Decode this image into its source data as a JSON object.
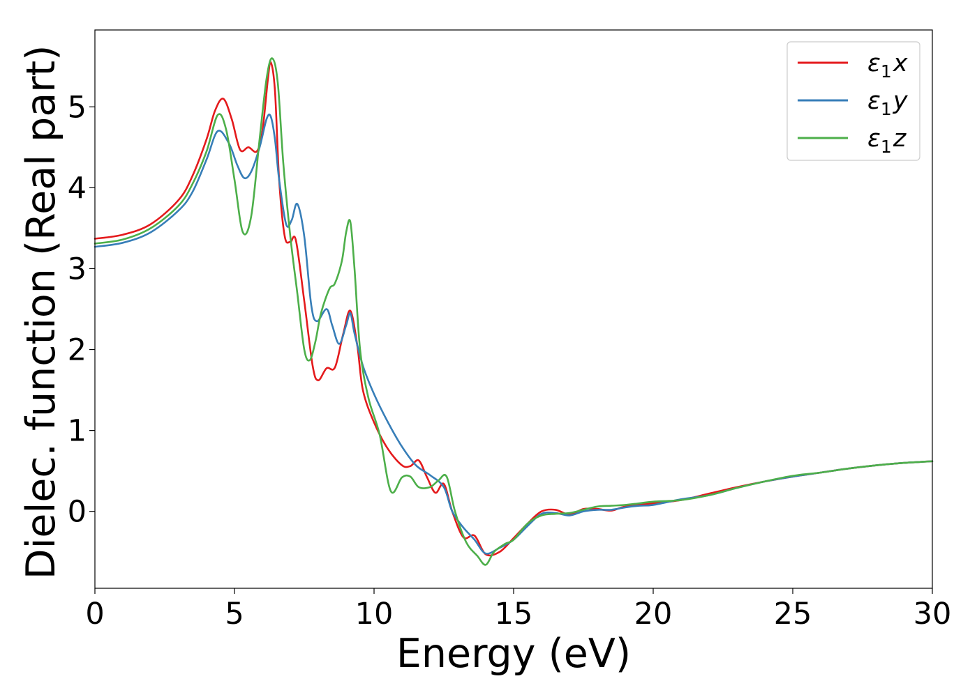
{
  "chart_data": {
    "type": "line",
    "title": "",
    "xlabel": "Energy (eV)",
    "ylabel": "Dielec. function (Real part)",
    "xlim": [
      0,
      30
    ],
    "ylim": [
      -0.95,
      5.95
    ],
    "xticks": [
      0,
      5,
      10,
      15,
      20,
      25,
      30
    ],
    "yticks": [
      0,
      1,
      2,
      3,
      4,
      5
    ],
    "grid": false,
    "legend_position": "top-right",
    "series": [
      {
        "name": "ε₁x",
        "legend": {
          "base": "ε",
          "sub": "1",
          "suffix": "x"
        },
        "color": "#e41a1c",
        "x": [
          0,
          1,
          2,
          3,
          3.5,
          4,
          4.3,
          4.6,
          4.9,
          5.2,
          5.5,
          5.8,
          6.0,
          6.2,
          6.3,
          6.45,
          6.6,
          6.8,
          7.0,
          7.2,
          7.5,
          7.8,
          8.0,
          8.3,
          8.6,
          8.9,
          9.15,
          9.4,
          9.6,
          10.0,
          10.5,
          11.0,
          11.3,
          11.6,
          11.9,
          12.2,
          12.5,
          12.8,
          13.2,
          13.6,
          14.0,
          14.5,
          15.0,
          15.5,
          16.0,
          16.5,
          17.0,
          17.5,
          18.0,
          18.5,
          19.0,
          20.0,
          21.0,
          22.0,
          23.0,
          24.0,
          25.0,
          26.0,
          27.0,
          28.0,
          29.0,
          30.0
        ],
        "y": [
          3.37,
          3.42,
          3.55,
          3.85,
          4.15,
          4.6,
          4.95,
          5.1,
          4.85,
          4.47,
          4.5,
          4.45,
          4.7,
          5.35,
          5.55,
          5.2,
          4.1,
          3.4,
          3.33,
          3.35,
          2.6,
          1.8,
          1.62,
          1.77,
          1.78,
          2.2,
          2.48,
          2.05,
          1.5,
          1.1,
          0.77,
          0.57,
          0.56,
          0.63,
          0.42,
          0.23,
          0.34,
          0.0,
          -0.32,
          -0.3,
          -0.53,
          -0.5,
          -0.33,
          -0.15,
          0.0,
          0.02,
          -0.04,
          0.03,
          0.03,
          0.01,
          0.06,
          0.1,
          0.14,
          0.22,
          0.3,
          0.37,
          0.43,
          0.48,
          0.53,
          0.57,
          0.6,
          0.62
        ]
      },
      {
        "name": "ε₁y",
        "legend": {
          "base": "ε",
          "sub": "1",
          "suffix": "y"
        },
        "color": "#377eb8",
        "x": [
          0,
          1,
          2,
          3,
          3.5,
          4,
          4.4,
          4.8,
          5.1,
          5.35,
          5.6,
          5.9,
          6.15,
          6.3,
          6.45,
          6.6,
          6.85,
          7.05,
          7.25,
          7.5,
          7.75,
          7.95,
          8.3,
          8.5,
          8.75,
          9.0,
          9.15,
          9.3,
          9.6,
          10.0,
          10.5,
          11.0,
          11.5,
          12.0,
          12.5,
          12.8,
          13.2,
          13.6,
          14.0,
          14.5,
          15.0,
          15.5,
          16.0,
          16.5,
          17.0,
          17.5,
          18.0,
          18.5,
          19.0,
          19.5,
          20.0,
          21.0,
          22.0,
          23.0,
          24.0,
          25.0,
          26.0,
          27.0,
          28.0,
          29.0,
          30.0
        ],
        "y": [
          3.27,
          3.32,
          3.45,
          3.72,
          3.95,
          4.35,
          4.7,
          4.55,
          4.28,
          4.12,
          4.2,
          4.5,
          4.85,
          4.88,
          4.6,
          4.1,
          3.55,
          3.6,
          3.8,
          3.4,
          2.55,
          2.35,
          2.5,
          2.3,
          2.07,
          2.3,
          2.45,
          2.2,
          1.8,
          1.45,
          1.1,
          0.8,
          0.57,
          0.45,
          0.3,
          0.0,
          -0.2,
          -0.35,
          -0.52,
          -0.45,
          -0.35,
          -0.18,
          -0.03,
          -0.02,
          -0.05,
          0.0,
          0.02,
          0.02,
          0.05,
          0.07,
          0.08,
          0.15,
          0.2,
          0.29,
          0.37,
          0.43,
          0.48,
          0.53,
          0.57,
          0.6,
          0.62
        ]
      },
      {
        "name": "ε₁z",
        "legend": {
          "base": "ε",
          "sub": "1",
          "suffix": "z"
        },
        "color": "#4daf4a",
        "x": [
          0,
          1,
          2,
          3,
          3.5,
          4,
          4.4,
          4.7,
          5.0,
          5.3,
          5.6,
          5.9,
          6.15,
          6.35,
          6.55,
          6.75,
          7.0,
          7.25,
          7.5,
          7.7,
          7.9,
          8.1,
          8.4,
          8.6,
          8.85,
          9.0,
          9.15,
          9.3,
          9.5,
          9.8,
          10.2,
          10.6,
          11.0,
          11.3,
          11.6,
          12.0,
          12.3,
          12.6,
          12.9,
          13.3,
          13.7,
          14.0,
          14.3,
          14.7,
          15.0,
          15.5,
          16.0,
          16.5,
          17.0,
          17.5,
          18.0,
          18.5,
          19.0,
          19.5,
          20.0,
          21.0,
          22.0,
          23.0,
          24.0,
          25.0,
          26.0,
          27.0,
          28.0,
          29.0,
          30.0
        ],
        "y": [
          3.31,
          3.36,
          3.5,
          3.78,
          4.05,
          4.45,
          4.9,
          4.72,
          4.1,
          3.45,
          3.65,
          4.6,
          5.35,
          5.6,
          5.3,
          4.3,
          3.4,
          2.7,
          2.0,
          1.87,
          2.1,
          2.45,
          2.75,
          2.82,
          3.1,
          3.45,
          3.58,
          3.0,
          2.0,
          1.4,
          0.95,
          0.25,
          0.42,
          0.43,
          0.3,
          0.3,
          0.38,
          0.43,
          0.0,
          -0.38,
          -0.55,
          -0.66,
          -0.5,
          -0.4,
          -0.35,
          -0.15,
          -0.05,
          -0.03,
          -0.02,
          0.02,
          0.06,
          0.07,
          0.08,
          0.1,
          0.12,
          0.14,
          0.2,
          0.29,
          0.37,
          0.44,
          0.48,
          0.53,
          0.57,
          0.6,
          0.62
        ]
      }
    ]
  }
}
